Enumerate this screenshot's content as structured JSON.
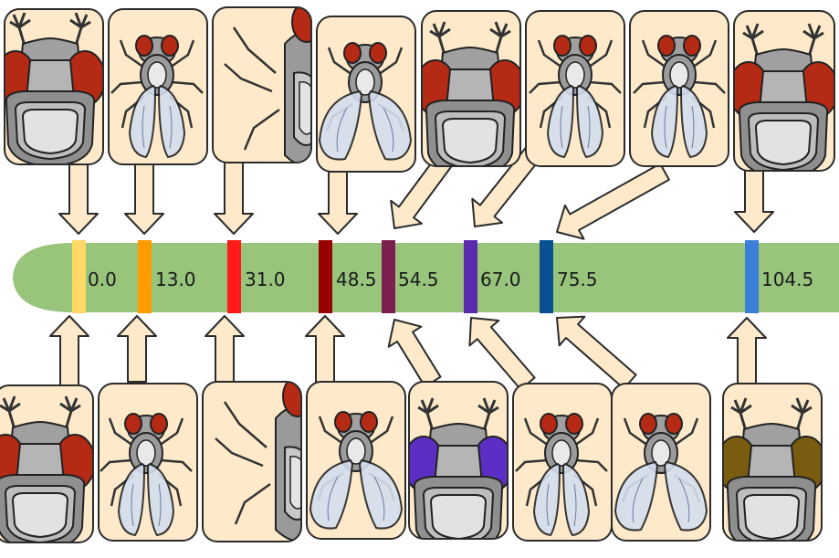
{
  "map": {
    "loci": [
      {
        "position": "0.0",
        "color": "#ffd866"
      },
      {
        "position": "13.0",
        "color": "#ff9a00"
      },
      {
        "position": "31.0",
        "color": "#ff1a1a"
      },
      {
        "position": "48.5",
        "color": "#990000"
      },
      {
        "position": "54.5",
        "color": "#7a1f4e"
      },
      {
        "position": "67.0",
        "color": "#5a2ab0"
      },
      {
        "position": "75.5",
        "color": "#0a4f91"
      },
      {
        "position": "104.5",
        "color": "#3b7fd8"
      }
    ]
  },
  "colors": {
    "chromosome": "#98c47b",
    "panel_fill": "#feeacb",
    "panel_stroke": "#2b2b2b",
    "arrow_fill": "#feeacb",
    "eye_red": "#b52a14",
    "eye_purple": "#5c2fc4",
    "eye_brown": "#7a5c10",
    "body_gray": "#9b9b9b",
    "wing": "#d3deef"
  }
}
